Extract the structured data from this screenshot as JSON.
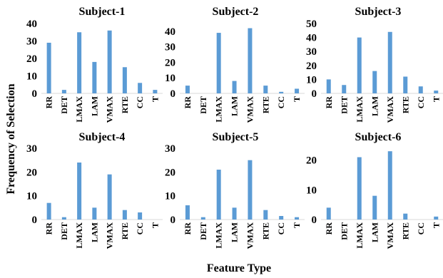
{
  "figure": {
    "xlabel": "Feature Type",
    "ylabel": "Frequency of Selection"
  },
  "chart_data": [
    {
      "type": "bar",
      "title": "Subject-1",
      "categories": [
        "RR",
        "DET",
        "LMAX",
        "LAM",
        "VMAX",
        "RTE",
        "CC",
        "T"
      ],
      "values": [
        29,
        2,
        35,
        18,
        36,
        15,
        6,
        2
      ],
      "ylim": [
        0,
        40
      ],
      "yticks": [
        0,
        10,
        20,
        30,
        40
      ],
      "grid": false
    },
    {
      "type": "bar",
      "title": "Subject-2",
      "categories": [
        "RR",
        "DET",
        "LMAX",
        "LAM",
        "VMAX",
        "RTE",
        "CC",
        "T"
      ],
      "values": [
        5,
        0,
        39,
        8,
        42,
        5,
        1,
        3
      ],
      "ylim": [
        0,
        45
      ],
      "yticks": [
        0,
        10,
        20,
        30,
        40
      ],
      "grid": false
    },
    {
      "type": "bar",
      "title": "Subject-3",
      "categories": [
        "RR",
        "DET",
        "LMAX",
        "LAM",
        "VMAX",
        "RTE",
        "CC",
        "T"
      ],
      "values": [
        10,
        6,
        40,
        16,
        44,
        12,
        5,
        2
      ],
      "ylim": [
        0,
        50
      ],
      "yticks": [
        0,
        10,
        20,
        30,
        40,
        50
      ],
      "grid": false
    },
    {
      "type": "bar",
      "title": "Subject-4",
      "categories": [
        "RR",
        "DET",
        "LMAX",
        "LAM",
        "VMAX",
        "RTE",
        "CC",
        "T"
      ],
      "values": [
        7,
        1,
        24,
        5,
        19,
        4,
        3,
        0
      ],
      "ylim": [
        0,
        30
      ],
      "yticks": [
        0,
        10,
        20,
        30
      ],
      "grid": false
    },
    {
      "type": "bar",
      "title": "Subject-5",
      "categories": [
        "RR",
        "DET",
        "LMAX",
        "LAM",
        "VMAX",
        "RTE",
        "CC",
        "T"
      ],
      "values": [
        6,
        1,
        21,
        5,
        25,
        4,
        1.5,
        1
      ],
      "ylim": [
        0,
        30
      ],
      "yticks": [
        0,
        10,
        20,
        30
      ],
      "grid": false
    },
    {
      "type": "bar",
      "title": "Subject-6",
      "categories": [
        "RR",
        "DET",
        "LMAX",
        "LAM",
        "VMAX",
        "RTE",
        "CC",
        "T"
      ],
      "values": [
        4,
        0,
        21,
        8,
        23,
        2,
        0,
        1
      ],
      "ylim": [
        0,
        24
      ],
      "yticks": [
        0,
        10,
        20
      ],
      "grid": false
    }
  ]
}
